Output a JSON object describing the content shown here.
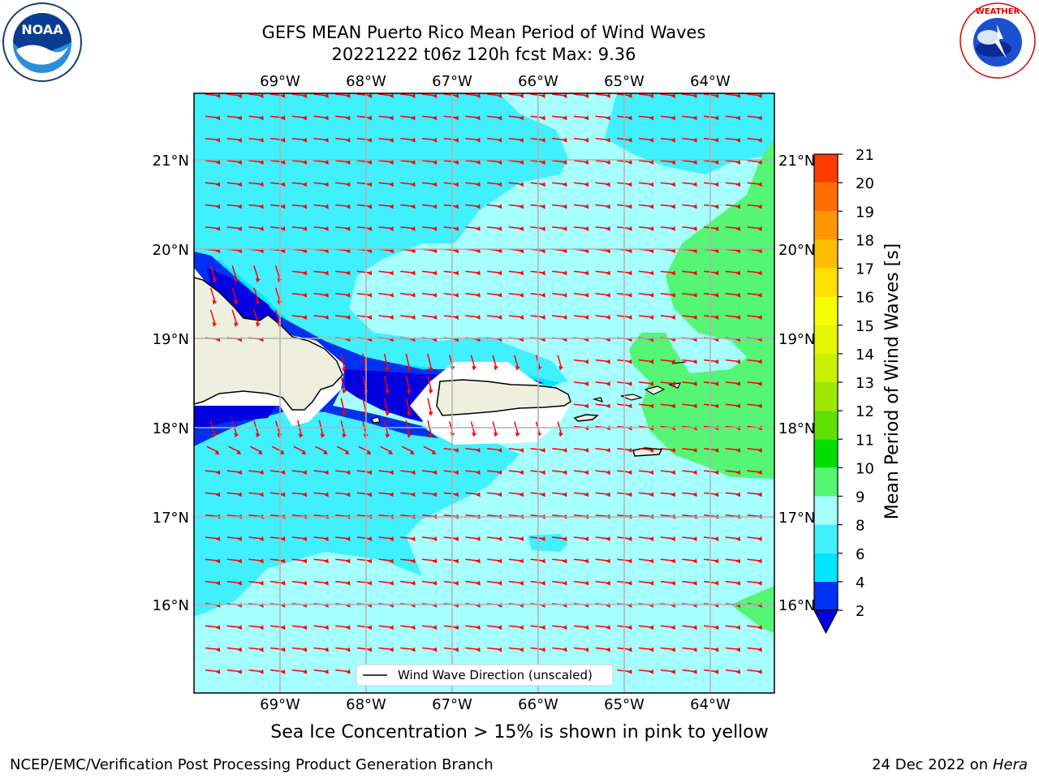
{
  "header": {
    "title_line1": "GEFS MEAN Puerto Rico Mean Period of Wind Waves",
    "title_line2": "20221222 t06z 120h fcst   Max: 9.36"
  },
  "logos": {
    "noaa": {
      "text": "NOAA",
      "ring_text": "NATIONAL OCEANIC AND ATMOSPHERIC ADMINISTRATION · U.S. DEPARTMENT OF COMMERCE"
    },
    "nws": {
      "ring_text": "NATIONAL WEATHER SERVICE"
    }
  },
  "map": {
    "lon_ticks": [
      "69°W",
      "68°W",
      "67°W",
      "66°W",
      "65°W",
      "64°W"
    ],
    "lat_ticks": [
      "21°N",
      "20°N",
      "19°N",
      "18°N",
      "17°N",
      "16°N"
    ],
    "legend_label": "Wind Wave Direction (unscaled)",
    "land_color": "#efefe0",
    "arrow_color": "#ff0000"
  },
  "colorbar": {
    "label": "Mean Period of Wind Waves [s]",
    "ticks": [
      "2",
      "4",
      "6",
      "8",
      "9",
      "10",
      "11",
      "12",
      "13",
      "14",
      "15",
      "16",
      "17",
      "18",
      "19",
      "20",
      "21"
    ],
    "colors": [
      "#0030f0",
      "#00e6ff",
      "#40f0ff",
      "#a6ffff",
      "#55f575",
      "#00e000",
      "#60e000",
      "#a0e800",
      "#c8f000",
      "#e6f500",
      "#f5ff00",
      "#ffe000",
      "#ffbe00",
      "#ff9600",
      "#ff6e00",
      "#ff3c00",
      "#ff0000"
    ],
    "under_color": "#0000e0"
  },
  "subtitle": "Sea Ice Concentration > 15% is shown in pink to yellow",
  "footer": {
    "left": "NCEP/EMC/Verification Post Processing Product Generation Branch",
    "right_prefix": "24 Dec 2022 on ",
    "right_machine": "Hera"
  }
}
